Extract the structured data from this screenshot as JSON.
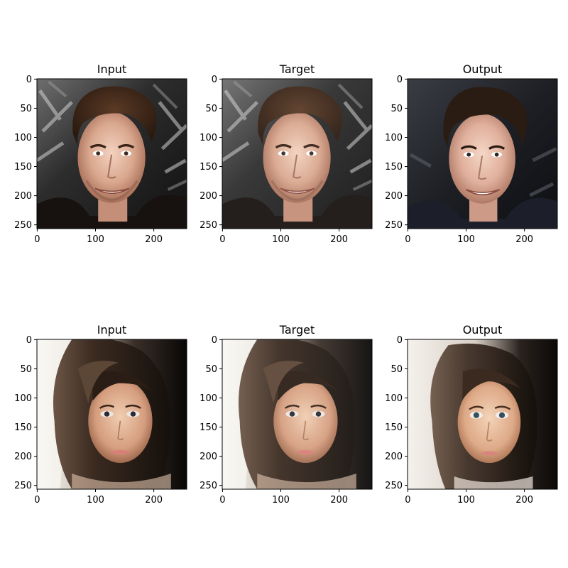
{
  "figure": {
    "panels": [
      {
        "title": "Input",
        "subject": "young man with brown tousled hair smiling, dark patterned background",
        "variant": "input"
      },
      {
        "title": "Target",
        "subject": "young man with brown tousled hair smiling, dark patterned background",
        "variant": "target"
      },
      {
        "title": "Output",
        "subject": "reconstructed young man face, smoother skin, darker background",
        "variant": "output"
      },
      {
        "title": "Input",
        "subject": "young woman with dark bob haircut and side bangs, bright window light at left",
        "variant": "input"
      },
      {
        "title": "Target",
        "subject": "young woman with dark bob haircut and side bangs, bright window light at left",
        "variant": "target"
      },
      {
        "title": "Output",
        "subject": "reconstructed young woman face, softer features, lighter background",
        "variant": "output"
      }
    ],
    "xticks": [
      "0",
      "100",
      "200"
    ],
    "yticks": [
      "0",
      "50",
      "100",
      "150",
      "200",
      "250"
    ]
  }
}
